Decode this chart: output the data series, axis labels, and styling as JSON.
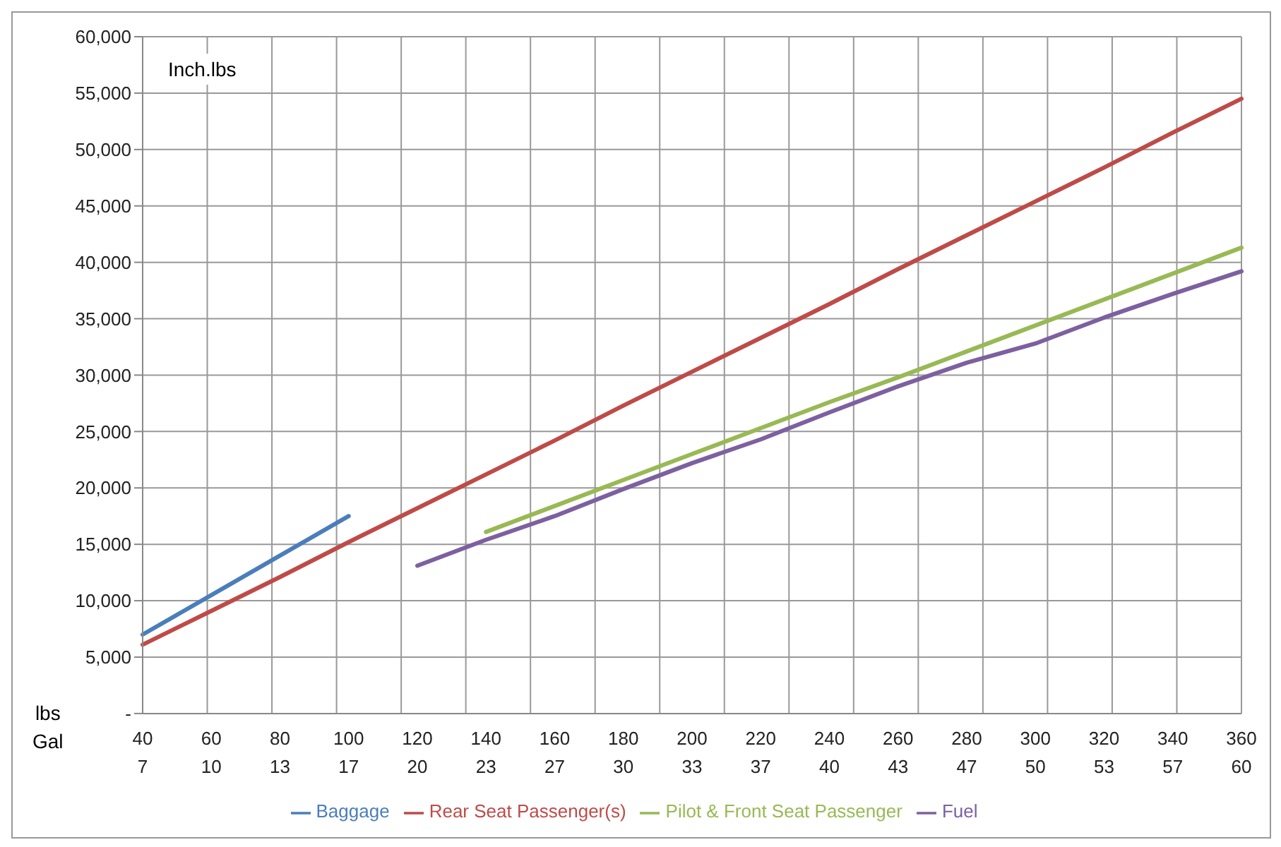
{
  "chart_data": {
    "type": "line",
    "ylabel": "Inch.lbs",
    "xlabel": "lbs\nGal",
    "categories": [
      "40\n7",
      "60\n10",
      "80\n13",
      "100\n17",
      "120\n20",
      "140\n23",
      "160\n27",
      "180\n30",
      "200\n33",
      "220\n37",
      "240\n40",
      "260\n43",
      "280\n47",
      "300\n50",
      "320\n53",
      "340\n57",
      "360\n60"
    ],
    "series": [
      {
        "name": "Baggage",
        "color": "#4a7ebb",
        "values": [
          7000,
          10500,
          14000,
          17500,
          null,
          null,
          null,
          null,
          null,
          null,
          null,
          null,
          null,
          null,
          null,
          null,
          null
        ]
      },
      {
        "name": "Rear Seat Passenger(s)",
        "color": "#be4b48",
        "values": [
          6100,
          9100,
          12100,
          15200,
          18200,
          21200,
          24200,
          27300,
          30300,
          33300,
          36300,
          39400,
          42400,
          45400,
          48400,
          51500,
          54500
        ]
      },
      {
        "name": "Pilot & Front Seat Passenger",
        "color": "#98b954",
        "values": [
          null,
          null,
          null,
          null,
          null,
          16100,
          18400,
          20700,
          23000,
          25300,
          27600,
          29800,
          32100,
          34400,
          36700,
          39000,
          41300
        ]
      },
      {
        "name": "Fuel",
        "color": "#7d60a0",
        "values": [
          null,
          null,
          null,
          null,
          13100,
          15400,
          17500,
          19900,
          22200,
          24300,
          26700,
          29000,
          31100,
          32800,
          35100,
          37200,
          39200
        ]
      }
    ],
    "ylim": [
      0,
      60000
    ],
    "yticks": [
      {
        "value": 0,
        "label": "-"
      },
      {
        "value": 5000,
        "label": "5,000"
      },
      {
        "value": 10000,
        "label": "10,000"
      },
      {
        "value": 15000,
        "label": "15,000"
      },
      {
        "value": 20000,
        "label": "20,000"
      },
      {
        "value": 25000,
        "label": "25,000"
      },
      {
        "value": 30000,
        "label": "30,000"
      },
      {
        "value": 35000,
        "label": "35,000"
      },
      {
        "value": 40000,
        "label": "40,000"
      },
      {
        "value": 45000,
        "label": "45,000"
      },
      {
        "value": 50000,
        "label": "50,000"
      },
      {
        "value": 55000,
        "label": "55,000"
      },
      {
        "value": 60000,
        "label": "60,000"
      }
    ],
    "grid": true,
    "legend": "bottom",
    "marker": "none",
    "line_style": "solid"
  }
}
